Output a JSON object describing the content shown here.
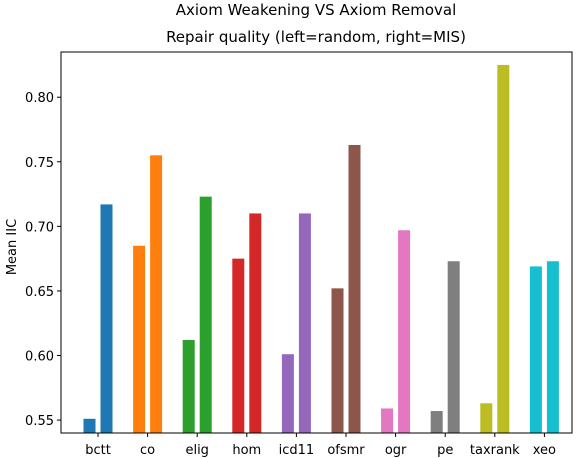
{
  "chart_data": {
    "type": "bar",
    "title": "Axiom Weakening VS Axiom Removal",
    "subtitle": "Repair quality (left=random, right=MIS)",
    "xlabel": "",
    "ylabel": "Mean IIC",
    "ylim": [
      0.54,
      0.835
    ],
    "yticks": [
      "0.55",
      "0.60",
      "0.65",
      "0.70",
      "0.75",
      "0.80"
    ],
    "yticks_values": [
      0.55,
      0.6,
      0.65,
      0.7,
      0.75,
      0.8
    ],
    "grid": false,
    "categories": [
      "bctt",
      "co",
      "elig",
      "hom",
      "icd11",
      "ofsmr",
      "ogr",
      "pe",
      "taxrank",
      "xeo"
    ],
    "colors": [
      "#1f77b4",
      "#ff7f0e",
      "#2ca02c",
      "#d62728",
      "#9467bd",
      "#8c564b",
      "#e377c2",
      "#7f7f7f",
      "#bcbd22",
      "#17becf"
    ],
    "random": [
      0.551,
      0.685,
      0.612,
      0.675,
      0.601,
      0.652,
      0.559,
      0.557,
      0.563,
      0.669
    ],
    "mis": [
      0.717,
      0.755,
      0.723,
      0.71,
      0.71,
      0.763,
      0.697,
      0.673,
      0.825,
      0.673
    ]
  }
}
